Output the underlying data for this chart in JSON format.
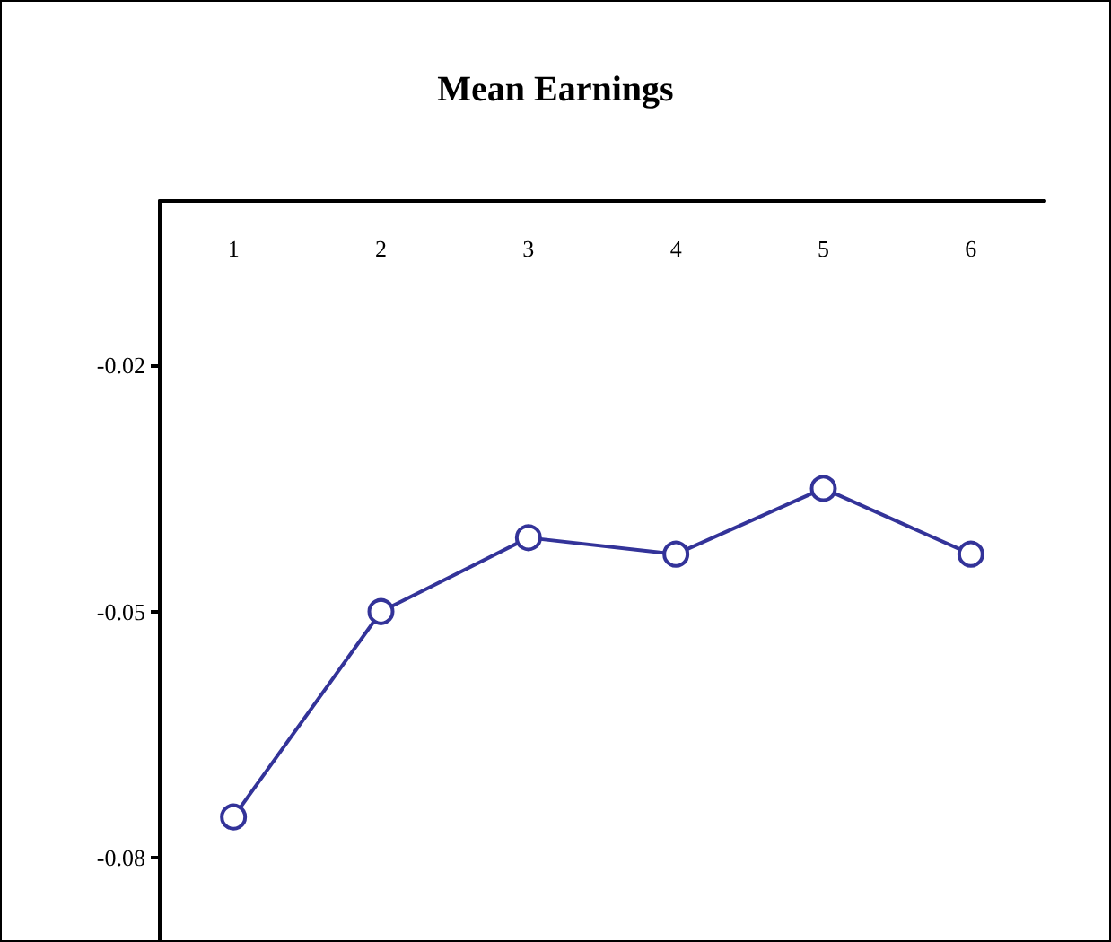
{
  "chart_data": {
    "type": "line",
    "title": "Mean Earnings",
    "categories": [
      "1",
      "2",
      "3",
      "4",
      "5",
      "6"
    ],
    "series": [
      {
        "color": "#333399",
        "values": [
          -0.075,
          -0.05,
          -0.041,
          -0.043,
          -0.035,
          -0.043
        ]
      }
    ],
    "ylim": [
      -0.09,
      0
    ],
    "yticks": [
      -0.08,
      -0.05,
      -0.02
    ],
    "grid": false,
    "marker": "circle",
    "line_style": "solid"
  }
}
